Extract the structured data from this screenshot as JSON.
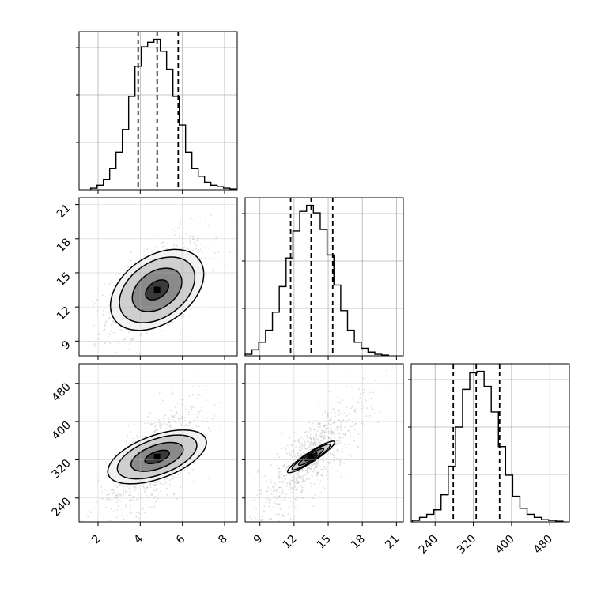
{
  "chart_data": {
    "type": "corner",
    "title": "",
    "parameters": [
      {
        "label": "",
        "median": 4.8,
        "q16": 3.9,
        "q84": 5.8,
        "range": [
          1.1,
          8.6
        ],
        "ticks": [
          2,
          4,
          6,
          8
        ],
        "tick_labels": [
          "2",
          "4",
          "6",
          "8"
        ]
      },
      {
        "label": "",
        "median": 13.5,
        "q16": 11.7,
        "q84": 15.4,
        "range": [
          7.7,
          21.6
        ],
        "ticks": [
          9,
          12,
          15,
          18,
          21
        ],
        "tick_labels": [
          "9",
          "12",
          "15",
          "18",
          "21"
        ]
      },
      {
        "label": "",
        "median": 326,
        "q16": 278,
        "q84": 375,
        "range": [
          190,
          521
        ],
        "ticks": [
          240,
          320,
          400,
          480
        ],
        "tick_labels": [
          "240",
          "320",
          "400",
          "480"
        ]
      }
    ],
    "histograms": [
      {
        "x": [
          1.8,
          2.1,
          2.4,
          2.7,
          3.0,
          3.3,
          3.6,
          3.9,
          4.2,
          4.5,
          4.8,
          5.1,
          5.4,
          5.7,
          6.0,
          6.3,
          6.6,
          6.9,
          7.2,
          7.5,
          7.8,
          8.1,
          8.4
        ],
        "counts": [
          1,
          3,
          7,
          14,
          25,
          40,
          62,
          82,
          95,
          98,
          100,
          92,
          80,
          62,
          43,
          25,
          14,
          9,
          5,
          3,
          2,
          1,
          0.5
        ]
      },
      {
        "x": [
          8.0,
          8.6,
          9.2,
          9.8,
          10.4,
          11.0,
          11.6,
          12.2,
          12.8,
          13.4,
          14.0,
          14.6,
          15.2,
          15.8,
          16.4,
          17.0,
          17.6,
          18.2,
          18.8,
          19.4,
          20.0
        ],
        "counts": [
          1,
          4,
          9,
          17,
          29,
          46,
          65,
          83,
          96,
          100,
          95,
          84,
          67,
          47,
          30,
          17,
          9,
          5,
          2.5,
          1,
          0.5
        ]
      },
      {
        "x": [
          200,
          215,
          230,
          245,
          260,
          275,
          290,
          305,
          320,
          335,
          350,
          365,
          380,
          395,
          410,
          425,
          440,
          455,
          470,
          485,
          500
        ],
        "counts": [
          1,
          3,
          5,
          8,
          18,
          37,
          63,
          88,
          99,
          100,
          90,
          73,
          50,
          31,
          17,
          9,
          5,
          3,
          1.5,
          1,
          0.5
        ]
      }
    ],
    "pairs": [
      {
        "x_param": 0,
        "y_param": 1,
        "center": [
          4.8,
          13.5
        ],
        "contours": [
          [
            0.9,
            1.6
          ],
          [
            1.9,
            3.6
          ],
          [
            2.9,
            5.4
          ],
          [
            3.6,
            6.6
          ]
        ],
        "angle_deg": 35
      },
      {
        "x_param": 0,
        "y_param": 2,
        "center": [
          4.8,
          326
        ],
        "contours": [
          [
            0.9,
            25
          ],
          [
            1.9,
            55
          ],
          [
            2.9,
            83
          ],
          [
            3.6,
            101
          ]
        ],
        "angle_deg": 20
      },
      {
        "x_param": 1,
        "y_param": 2,
        "center": [
          13.5,
          326
        ],
        "contours": [
          [
            0.9,
            6
          ],
          [
            1.9,
            13
          ],
          [
            2.9,
            19
          ],
          [
            3.6,
            23
          ]
        ],
        "angle_deg": 33
      }
    ],
    "grid": true
  }
}
